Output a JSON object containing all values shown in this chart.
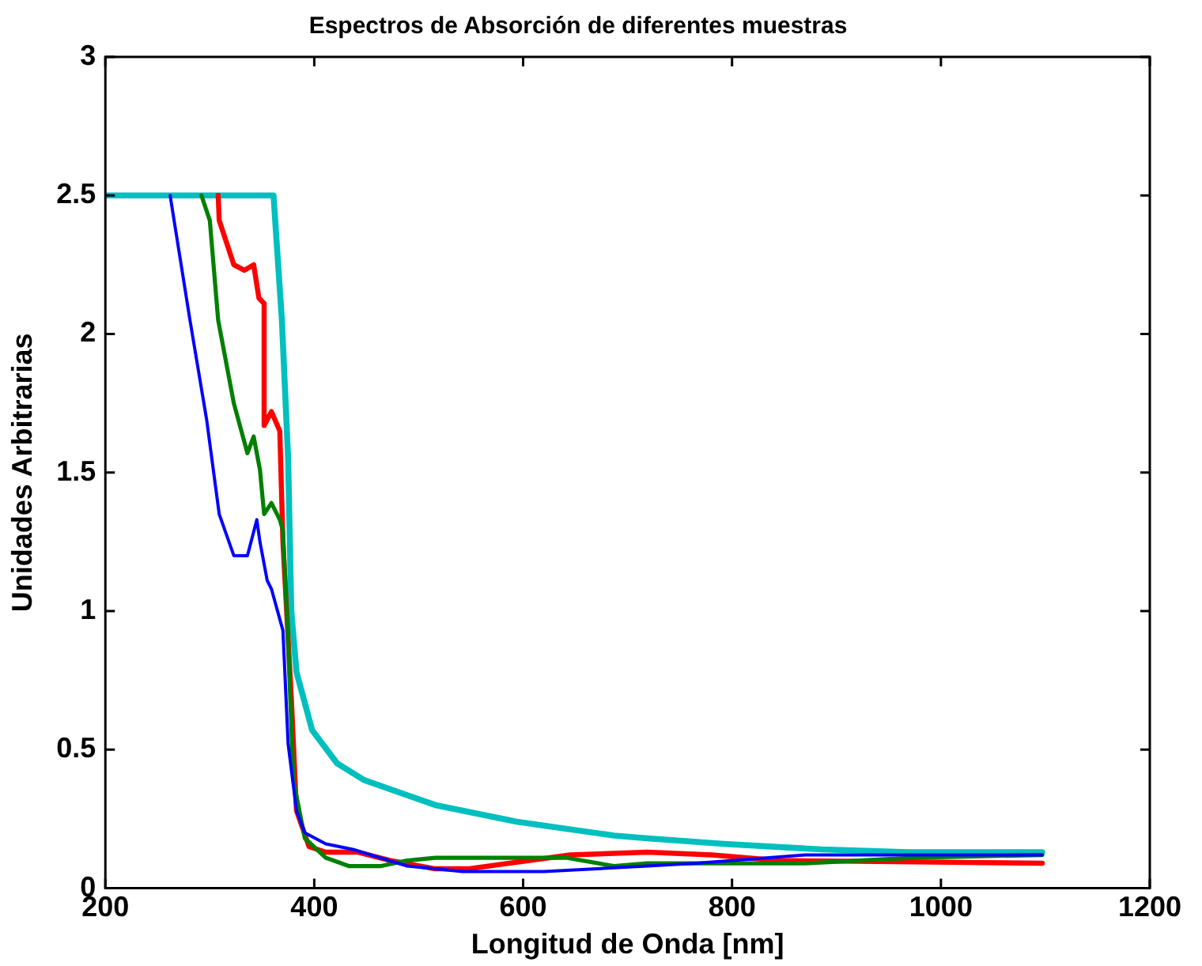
{
  "chart_data": {
    "type": "line",
    "title": "Espectros de Absorción de diferentes muestras",
    "xlabel": "Longitud de Onda [nm]",
    "ylabel": "Unidades Arbitrarias",
    "xlim": [
      200,
      1200
    ],
    "xticks": [
      200,
      400,
      600,
      800,
      1000,
      1200
    ],
    "ylim": [
      0,
      3
    ],
    "yticks": [
      0,
      0.5,
      1,
      1.5,
      2,
      2.5,
      3
    ],
    "grid": false,
    "legend": false,
    "marker": "none",
    "line_style": "solid",
    "series": [
      {
        "color": "#0000ff",
        "x": [
          262,
          281,
          297,
          309,
          323,
          336,
          345,
          348,
          355,
          359,
          370,
          375,
          383,
          391,
          411,
          437,
          489,
          542,
          620,
          719,
          766,
          870,
          1097
        ],
        "values": [
          2.5,
          2.05,
          1.69,
          1.35,
          1.2,
          1.2,
          1.33,
          1.25,
          1.11,
          1.08,
          0.93,
          0.52,
          0.28,
          0.2,
          0.16,
          0.14,
          0.08,
          0.06,
          0.06,
          0.08,
          0.09,
          0.12,
          0.12
        ]
      },
      {
        "color": "#008000",
        "x": [
          292,
          300,
          308,
          323,
          336,
          342,
          348,
          352,
          359,
          367,
          370,
          375,
          380,
          391,
          411,
          433,
          464,
          489,
          516,
          641,
          687,
          719,
          870,
          973,
          1097
        ],
        "values": [
          2.5,
          2.41,
          2.05,
          1.75,
          1.57,
          1.63,
          1.51,
          1.35,
          1.39,
          1.33,
          1.29,
          0.89,
          0.39,
          0.18,
          0.11,
          0.08,
          0.08,
          0.1,
          0.11,
          0.11,
          0.08,
          0.09,
          0.09,
          0.11,
          0.12
        ]
      },
      {
        "color": "#ff0000",
        "x": [
          308,
          309,
          323,
          333,
          342,
          347,
          352,
          352,
          359,
          367,
          370,
          378,
          383,
          395,
          411,
          442,
          473,
          516,
          547,
          645,
          719,
          781,
          844,
          1097
        ],
        "values": [
          2.5,
          2.41,
          2.25,
          2.23,
          2.25,
          2.13,
          2.11,
          1.67,
          1.72,
          1.65,
          1.25,
          0.69,
          0.28,
          0.15,
          0.13,
          0.13,
          0.1,
          0.07,
          0.07,
          0.12,
          0.13,
          0.12,
          0.1,
          0.09
        ]
      },
      {
        "color": "#00bfbf",
        "x": [
          200,
          361,
          369,
          375,
          378,
          383,
          398,
          422,
          448,
          516,
          594,
          687,
          719,
          792,
          886,
          969,
          1097
        ],
        "values": [
          2.5,
          2.5,
          2.05,
          1.55,
          1.0,
          0.78,
          0.57,
          0.45,
          0.39,
          0.3,
          0.24,
          0.19,
          0.18,
          0.16,
          0.14,
          0.13,
          0.13
        ]
      }
    ]
  }
}
